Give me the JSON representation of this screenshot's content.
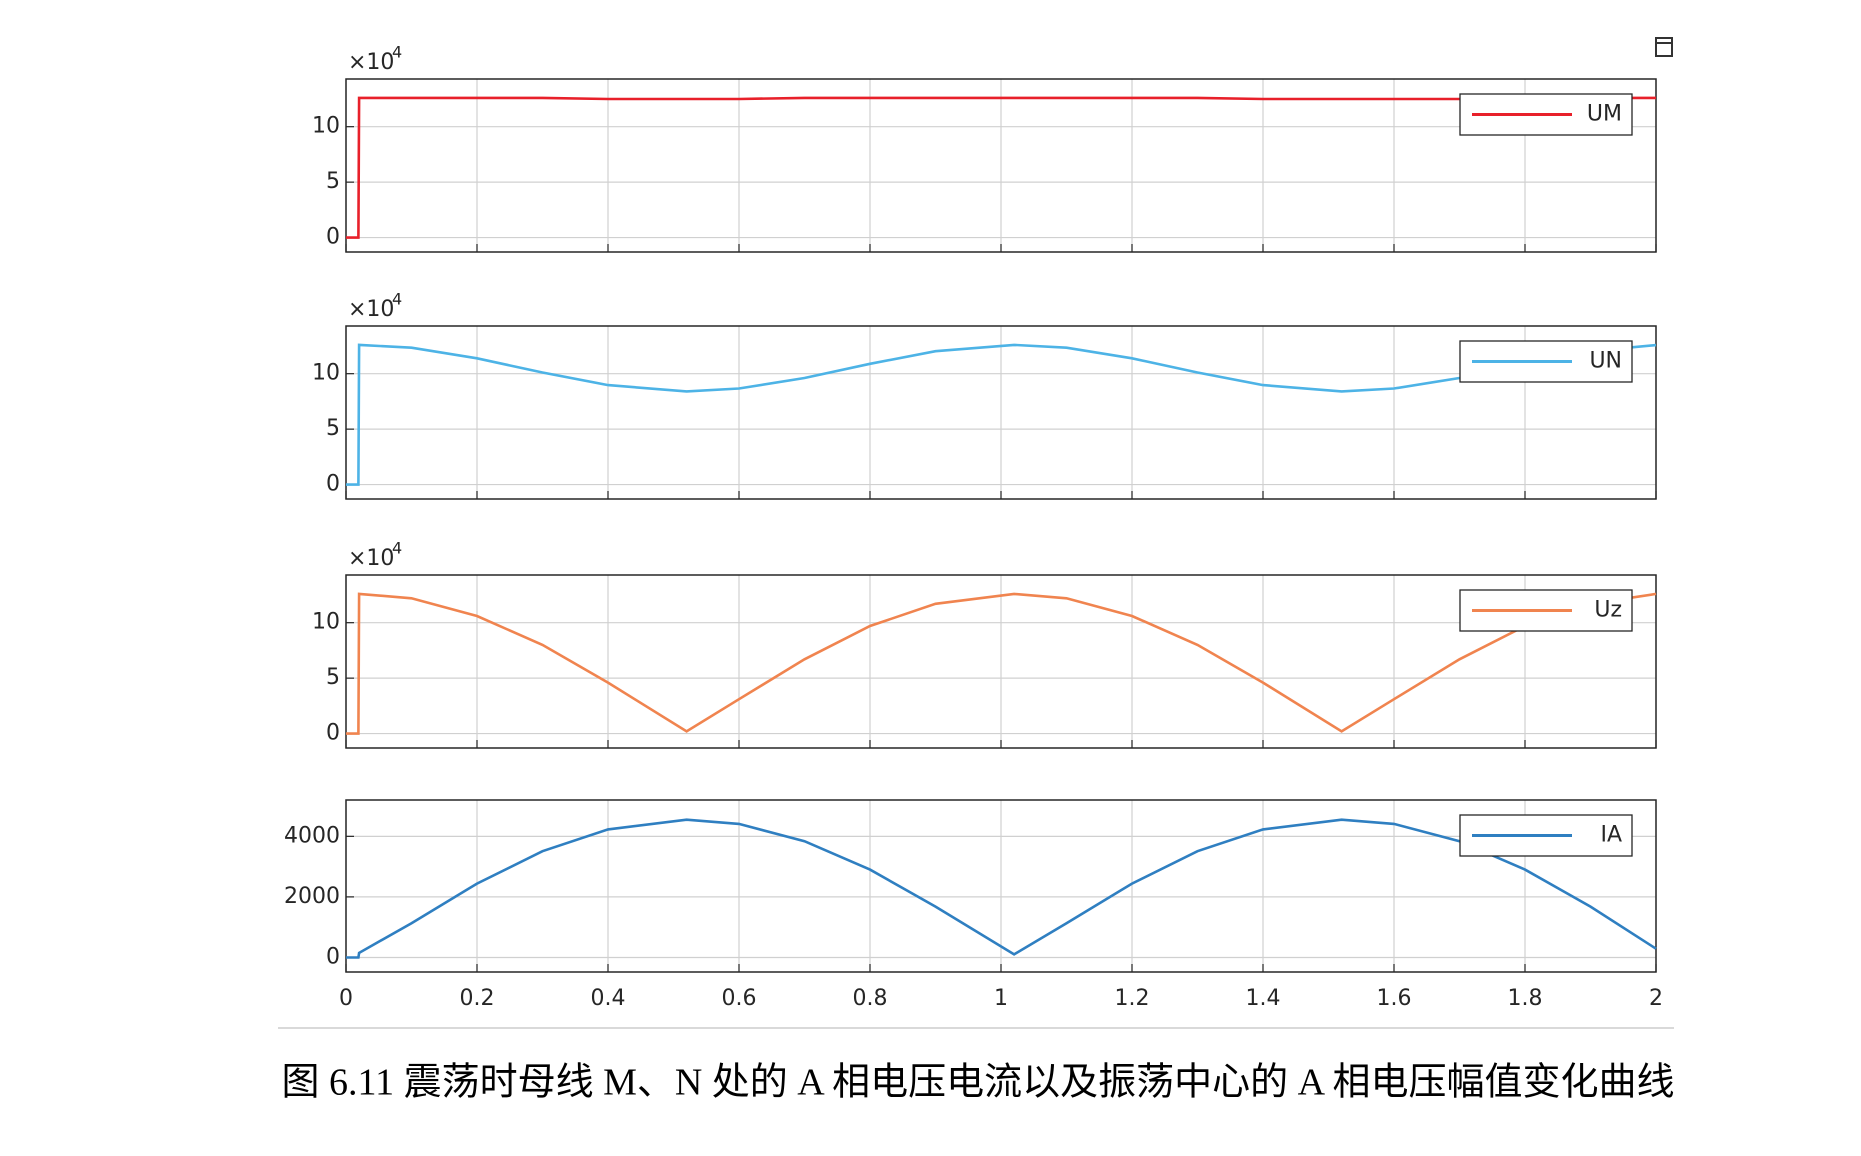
{
  "chart_data": [
    {
      "type": "line",
      "x": [
        0,
        0.019,
        0.02,
        0.1,
        0.2,
        0.3,
        0.4,
        0.52,
        0.6,
        0.7,
        0.8,
        0.9,
        1.02,
        1.1,
        1.2,
        1.3,
        1.4,
        1.52,
        1.6,
        1.7,
        1.8,
        1.9,
        2.0
      ],
      "series": [
        {
          "name": "UM",
          "color": "#e8202a",
          "values": [
            0,
            0,
            12.6,
            12.6,
            12.6,
            12.6,
            12.5,
            12.5,
            12.5,
            12.6,
            12.6,
            12.6,
            12.6,
            12.6,
            12.6,
            12.6,
            12.5,
            12.5,
            12.5,
            12.5,
            12.6,
            12.6,
            12.6
          ]
        }
      ],
      "xlim": [
        0,
        2
      ],
      "xticks": [
        0,
        0.2,
        0.4,
        0.6,
        0.8,
        1,
        1.2,
        1.4,
        1.6,
        1.8,
        2
      ],
      "x_tick_labels": false,
      "ylim": [
        -1.3,
        14.3
      ],
      "yticks": [
        0,
        5,
        10
      ],
      "y_multiplier_base": "×10",
      "y_multiplier_exponent": "4",
      "grid": true,
      "legend": "upper right"
    },
    {
      "type": "line",
      "x": [
        0,
        0.019,
        0.02,
        0.1,
        0.2,
        0.3,
        0.4,
        0.52,
        0.6,
        0.7,
        0.8,
        0.9,
        1.02,
        1.1,
        1.2,
        1.3,
        1.4,
        1.52,
        1.6,
        1.7,
        1.8,
        1.9,
        2.0
      ],
      "series": [
        {
          "name": "UN",
          "color": "#4db3e6",
          "values": [
            0,
            0,
            12.6,
            12.34,
            11.39,
            10.11,
            8.97,
            8.4,
            8.66,
            9.61,
            10.89,
            12.03,
            12.6,
            12.34,
            11.39,
            10.11,
            8.97,
            8.4,
            8.66,
            9.61,
            10.89,
            12.03,
            12.58
          ]
        }
      ],
      "xlim": [
        0,
        2
      ],
      "xticks": [
        0,
        0.2,
        0.4,
        0.6,
        0.8,
        1,
        1.2,
        1.4,
        1.6,
        1.8,
        2
      ],
      "x_tick_labels": false,
      "ylim": [
        -1.3,
        14.3
      ],
      "yticks": [
        0,
        5,
        10
      ],
      "y_multiplier_base": "×10",
      "y_multiplier_exponent": "4",
      "grid": true,
      "legend": "upper right"
    },
    {
      "type": "line",
      "x": [
        0,
        0.019,
        0.02,
        0.1,
        0.2,
        0.3,
        0.4,
        0.52,
        0.6,
        0.7,
        0.8,
        0.9,
        1.02,
        1.1,
        1.2,
        1.3,
        1.4,
        1.52,
        1.6,
        1.7,
        1.8,
        1.9,
        2.0
      ],
      "series": [
        {
          "name": "Uz",
          "color": "#f0844f",
          "values": [
            0,
            0,
            12.6,
            12.2,
            10.6,
            8.0,
            4.6,
            0.2,
            3.1,
            6.7,
            9.7,
            11.7,
            12.6,
            12.2,
            10.6,
            8.0,
            4.6,
            0.2,
            3.1,
            6.7,
            9.7,
            11.7,
            12.6
          ]
        }
      ],
      "xlim": [
        0,
        2
      ],
      "xticks": [
        0,
        0.2,
        0.4,
        0.6,
        0.8,
        1,
        1.2,
        1.4,
        1.6,
        1.8,
        2
      ],
      "x_tick_labels": false,
      "ylim": [
        -1.3,
        14.3
      ],
      "yticks": [
        0,
        5,
        10
      ],
      "y_multiplier_base": "×10",
      "y_multiplier_exponent": "4",
      "grid": true,
      "legend": "upper right"
    },
    {
      "type": "line",
      "x": [
        0,
        0.019,
        0.02,
        0.1,
        0.2,
        0.3,
        0.4,
        0.52,
        0.6,
        0.7,
        0.8,
        0.9,
        1.02,
        1.1,
        1.2,
        1.3,
        1.4,
        1.52,
        1.6,
        1.7,
        1.8,
        1.9,
        2.0
      ],
      "series": [
        {
          "name": "IA",
          "color": "#2f7fc1",
          "values": [
            0,
            0,
            150,
            1130,
            2440,
            3510,
            4230,
            4550,
            4410,
            3840,
            2900,
            1680,
            100,
            1130,
            2440,
            3510,
            4230,
            4550,
            4410,
            3840,
            2900,
            1680,
            290
          ]
        }
      ],
      "xlim": [
        0,
        2
      ],
      "xticks": [
        0,
        0.2,
        0.4,
        0.6,
        0.8,
        1,
        1.2,
        1.4,
        1.6,
        1.8,
        2
      ],
      "x_tick_labels": true,
      "ylim": [
        -480,
        5200
      ],
      "yticks": [
        0,
        2000,
        4000
      ],
      "grid": true,
      "legend": "upper right"
    }
  ],
  "caption": "图 6.11  震荡时母线 M、N 处的 A 相电压电流以及振荡中心的 A 相电压幅值变化曲线"
}
